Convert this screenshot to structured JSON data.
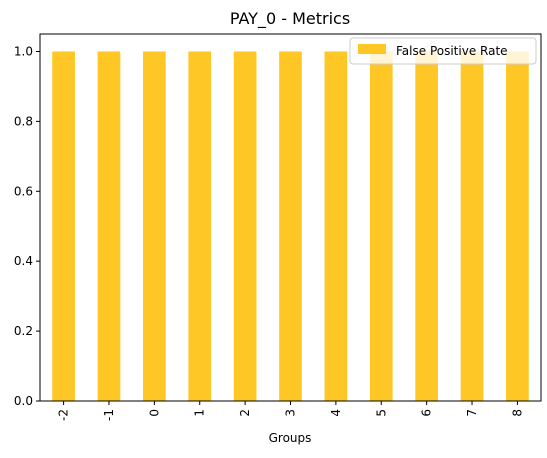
{
  "chart_data": {
    "type": "bar",
    "title": "PAY_0 - Metrics",
    "xlabel": "Groups",
    "ylabel": "",
    "categories": [
      "-2",
      "-1",
      "0",
      "1",
      "2",
      "3",
      "4",
      "5",
      "6",
      "7",
      "8"
    ],
    "series": [
      {
        "name": "False Positive Rate",
        "values": [
          1.0,
          1.0,
          1.0,
          1.0,
          1.0,
          1.0,
          1.0,
          1.0,
          1.0,
          1.0,
          1.0
        ],
        "color": "#FFC726"
      }
    ],
    "ylim": [
      0,
      1.05
    ],
    "yticks": [
      0.0,
      0.2,
      0.4,
      0.6,
      0.8,
      1.0
    ],
    "ytick_labels": [
      "0.0",
      "0.2",
      "0.4",
      "0.6",
      "0.8",
      "1.0"
    ],
    "grid": false,
    "legend_position": "top-right"
  }
}
